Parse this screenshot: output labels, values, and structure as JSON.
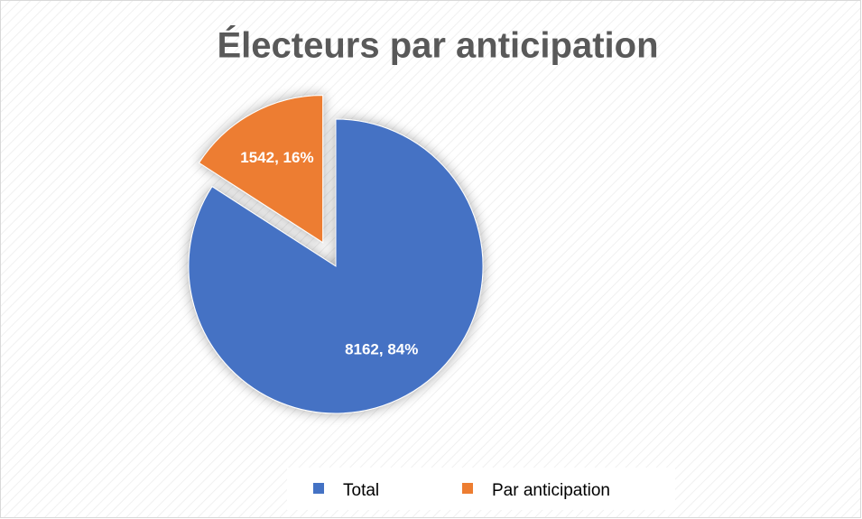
{
  "chart_data": {
    "type": "pie",
    "title": "Électeurs par anticipation",
    "categories": [
      "Total",
      "Par anticipation"
    ],
    "values": [
      8162,
      1542
    ],
    "value_labels": [
      "8162, 84%",
      "1542, 16%"
    ],
    "colors": [
      "#4472c4",
      "#ed7d31"
    ],
    "legend": "bottom"
  }
}
